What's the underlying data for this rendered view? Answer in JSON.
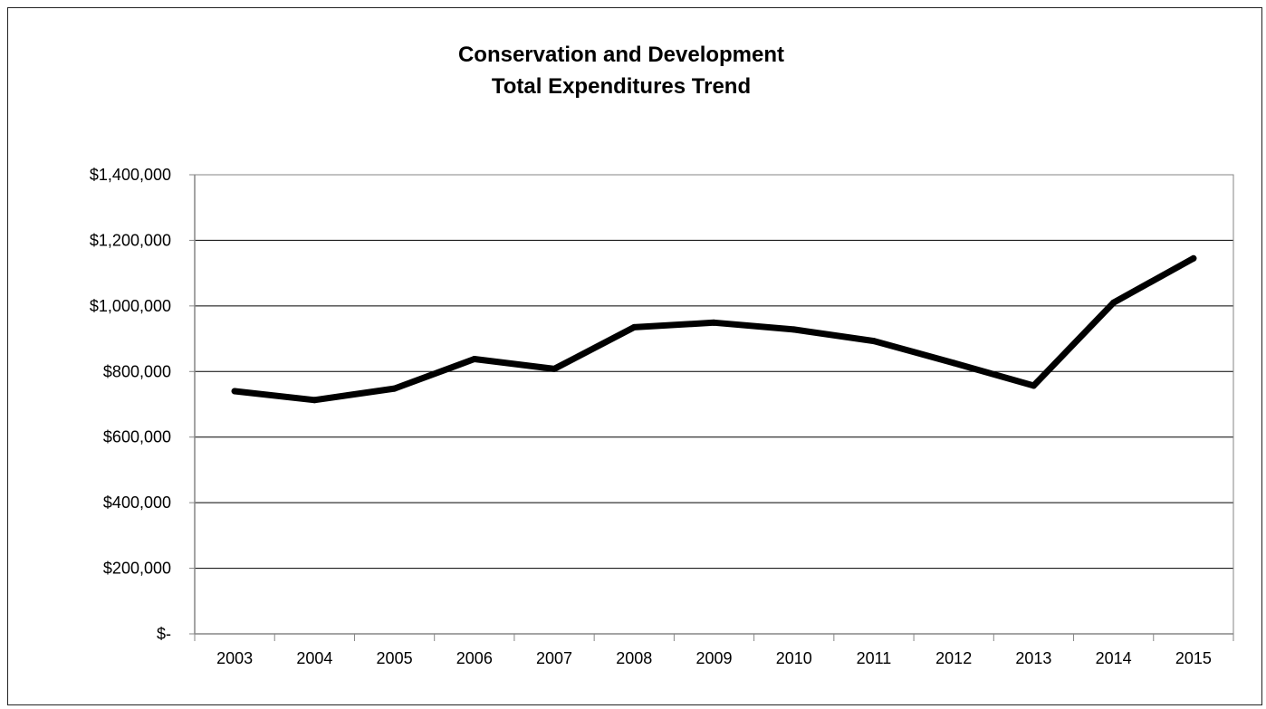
{
  "chart_data": {
    "type": "line",
    "title_lines": [
      "Conservation and Development",
      "Total Expenditures Trend"
    ],
    "xlabel": "",
    "ylabel": "",
    "categories": [
      "2003",
      "2004",
      "2005",
      "2006",
      "2007",
      "2008",
      "2009",
      "2010",
      "2011",
      "2012",
      "2013",
      "2014",
      "2015"
    ],
    "series": [
      {
        "values": [
          740000,
          713000,
          748000,
          838000,
          808000,
          935000,
          949000,
          928000,
          893000,
          826000,
          757000,
          1010000,
          1145000
        ]
      }
    ],
    "ylim": [
      0,
      1400000
    ],
    "y_ticks": [
      {
        "value": 0,
        "label": "$-"
      },
      {
        "value": 200000,
        "label": "$200,000"
      },
      {
        "value": 400000,
        "label": "$400,000"
      },
      {
        "value": 600000,
        "label": "$600,000"
      },
      {
        "value": 800000,
        "label": "$800,000"
      },
      {
        "value": 1000000,
        "label": "$1,000,000"
      },
      {
        "value": 1200000,
        "label": "$1,200,000"
      },
      {
        "value": 1400000,
        "label": "$1,400,000"
      }
    ],
    "grid": true,
    "legend": "none",
    "colors": {
      "line": "#000000",
      "grid": "#000000",
      "axis": "#868686"
    }
  }
}
